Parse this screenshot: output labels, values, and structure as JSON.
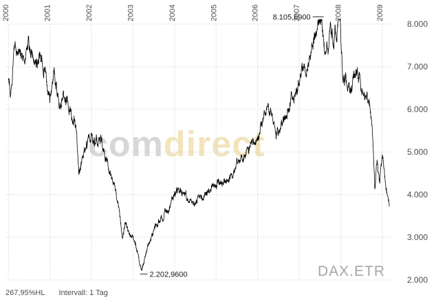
{
  "chart_data": {
    "type": "line",
    "instrument": "DAX.ETR",
    "title": "",
    "xlabel": "",
    "ylabel": "",
    "grid": true,
    "legend": false,
    "xlim": [
      1999.93,
      2009.25
    ],
    "ylim": [
      2000,
      8000
    ],
    "x_ticks": [
      2000,
      2001,
      2002,
      2003,
      2004,
      2005,
      2006,
      2007,
      2008,
      2009
    ],
    "x_tick_labels": [
      "2000",
      "2001",
      "2002",
      "2003",
      "2004",
      "2005",
      "2006",
      "2007",
      "2008",
      "2009"
    ],
    "y_ticks": [
      2000,
      3000,
      4000,
      5000,
      6000,
      7000,
      8000
    ],
    "y_tick_labels": [
      "2.000",
      "3.000",
      "4.000",
      "5.000",
      "6.000",
      "7.000",
      "8.000"
    ],
    "series": [
      {
        "name": "DAX.ETR",
        "anchors_x": [
          2000.0,
          2000.06,
          2000.12,
          2000.2,
          2000.3,
          2000.42,
          2000.55,
          2000.65,
          2000.75,
          2000.88,
          2001.0,
          2001.1,
          2001.22,
          2001.35,
          2001.5,
          2001.62,
          2001.7,
          2001.76,
          2001.88,
          2002.0,
          2002.1,
          2002.22,
          2002.33,
          2002.45,
          2002.55,
          2002.65,
          2002.75,
          2002.82,
          2002.9,
          2003.0,
          2003.08,
          2003.2,
          2003.3,
          2003.42,
          2003.55,
          2003.7,
          2003.85,
          2004.0,
          2004.15,
          2004.3,
          2004.5,
          2004.62,
          2004.8,
          2005.0,
          2005.2,
          2005.4,
          2005.6,
          2005.8,
          2006.0,
          2006.15,
          2006.33,
          2006.45,
          2006.6,
          2006.8,
          2007.0,
          2007.12,
          2007.25,
          2007.4,
          2007.54,
          2007.63,
          2007.75,
          2007.85,
          2007.97,
          2008.05,
          2008.17,
          2008.3,
          2008.4,
          2008.55,
          2008.67,
          2008.76,
          2008.82,
          2008.88,
          2008.94,
          2009.0,
          2009.07,
          2009.17
        ],
        "anchors_y": [
          6650,
          6450,
          7300,
          7600,
          7150,
          7350,
          7450,
          7100,
          7250,
          6900,
          6400,
          6700,
          6100,
          6250,
          5950,
          5550,
          4500,
          4900,
          5100,
          5350,
          5200,
          5380,
          4900,
          4450,
          4150,
          3650,
          2950,
          3350,
          3050,
          2950,
          2750,
          2203,
          2520,
          2950,
          3250,
          3480,
          3650,
          4000,
          4130,
          3880,
          3820,
          3920,
          4080,
          4250,
          4320,
          4480,
          4830,
          5090,
          5410,
          5730,
          6110,
          5390,
          5690,
          6160,
          6600,
          6920,
          7220,
          7850,
          8106,
          7310,
          7850,
          7700,
          8050,
          6850,
          6550,
          6750,
          7080,
          6350,
          6150,
          5650,
          4250,
          4850,
          4350,
          4810,
          4350,
          3700
        ]
      }
    ],
    "annotations": [
      {
        "type": "high",
        "label": "8.105,6900",
        "x": 2007.54,
        "y": 8105.69
      },
      {
        "type": "low",
        "label": "2.202,9600",
        "x": 2003.2,
        "y": 2202.96
      }
    ]
  },
  "watermark": {
    "part1": "com",
    "part2": "direct"
  },
  "footer": {
    "range_label": "267,95%HL",
    "interval_label": "Intervall: 1 Tag"
  },
  "colors": {
    "line": "#000000",
    "grid": "#c9c9c9",
    "axis_text": "#4d4d4d",
    "annotation_text": "#1a1a1a",
    "annotation_tick": "#333333",
    "watermark_gray": "#d7d7d7",
    "watermark_yellow": "#f2e4bb",
    "instrument_text": "#a6a6a6"
  }
}
